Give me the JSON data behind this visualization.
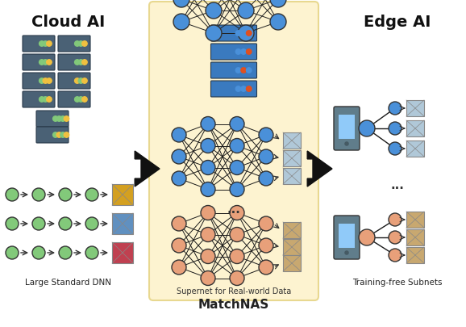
{
  "title": "",
  "bg_color": "#ffffff",
  "matchnas_box_color": "#fdf3d0",
  "matchnas_box_edge": "#e8d890",
  "cloud_ai_label": "Cloud AI",
  "edge_ai_label": "Edge AI",
  "large_dnn_label": "Large Standard DNN",
  "supernet_label": "Supernet for Real-world Data",
  "matchnas_label": "MatchNAS",
  "subnet_label": "Training-free Subnets",
  "server_color": "#4a6175",
  "server_blue_color": "#3a7abf",
  "node_blue": "#4a90d9",
  "node_orange": "#e8a07a",
  "node_green": "#82c97a",
  "arrow_color": "#1a1a1a",
  "img_placeholder_color": "#cccccc",
  "dots_color": "#333333"
}
